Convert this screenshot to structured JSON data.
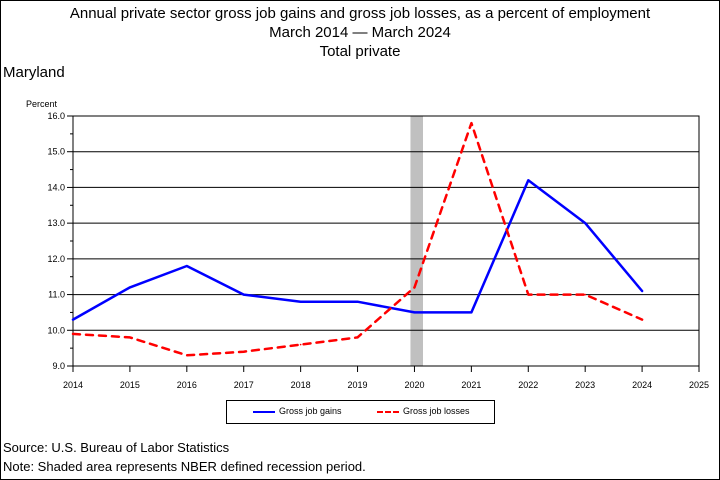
{
  "chart_data": {
    "type": "line",
    "title": "Annual private sector gross job gains and gross job losses, as a percent of employment",
    "subtitle": "March 2014 — March 2024",
    "sector": "Total private",
    "region": "Maryland",
    "xlabel": "",
    "ylabel": "Percent",
    "xlim": [
      2014,
      2025
    ],
    "ylim": [
      9.0,
      16.0
    ],
    "x_ticks": [
      "2014",
      "2015",
      "2016",
      "2017",
      "2018",
      "2019",
      "2020",
      "2021",
      "2022",
      "2023",
      "2024",
      "2025"
    ],
    "y_ticks": [
      "9.0",
      "10.0",
      "11.0",
      "12.0",
      "13.0",
      "14.0",
      "15.0",
      "16.0"
    ],
    "grid": "horizontal",
    "recession": [
      2020.0,
      2020.15
    ],
    "series": [
      {
        "name": "Gross job gains",
        "color": "#0000ff",
        "style": "solid",
        "x": [
          2014,
          2015,
          2016,
          2017,
          2018,
          2019,
          2020,
          2021,
          2022,
          2023,
          2024
        ],
        "values": [
          10.3,
          11.2,
          11.8,
          11.0,
          10.8,
          10.8,
          10.5,
          10.5,
          14.2,
          13.0,
          11.1
        ]
      },
      {
        "name": "Gross job losses",
        "color": "#ff0000",
        "style": "dashed",
        "x": [
          2014,
          2015,
          2016,
          2017,
          2018,
          2019,
          2020,
          2021,
          2022,
          2023,
          2024
        ],
        "values": [
          9.9,
          9.8,
          9.3,
          9.4,
          9.6,
          9.8,
          11.2,
          15.8,
          11.0,
          11.0,
          10.3
        ]
      }
    ]
  },
  "footer": {
    "source": "Source: U.S. Bureau of Labor Statistics",
    "note": "Note: Shaded area represents NBER defined recession period."
  }
}
